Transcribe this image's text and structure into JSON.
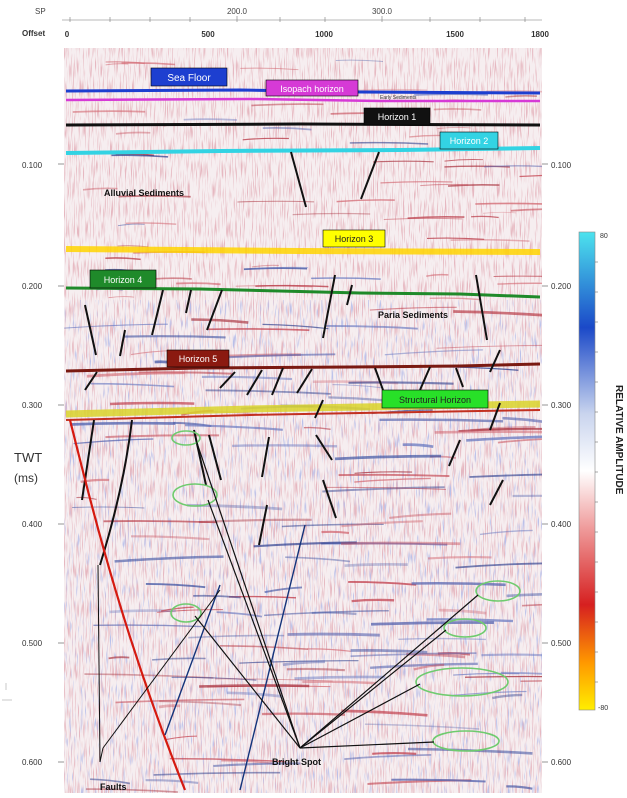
{
  "header": {
    "sp_label": "SP",
    "offset_label": "Offset",
    "sp_ticks": [
      "200.0",
      "300.0"
    ],
    "offset_ticks": [
      "0",
      "500",
      "1000",
      "1500",
      "1800"
    ]
  },
  "twt_axis": {
    "title_line1": "TWT",
    "title_line2": "(ms)",
    "left_ticks": [
      "0.100",
      "0.200",
      "0.300",
      "0.400",
      "0.500",
      "0.600"
    ],
    "right_ticks": [
      "0.100",
      "0.200",
      "0.300",
      "0.400",
      "0.500",
      "0.600"
    ]
  },
  "horizons": [
    {
      "label": "Sea Floor",
      "box_color": "#1d3fd0",
      "text_color": "#ffffff"
    },
    {
      "label": "Isopach horizon",
      "box_color": "#d63ad6",
      "text_color": "#ffffff"
    },
    {
      "label": "Horizon 1",
      "box_color": "#111111",
      "text_color": "#ffffff"
    },
    {
      "label": "Horizon 2",
      "box_color": "#33d3e3",
      "text_color": "#ffffff"
    },
    {
      "label": "Horizon 3",
      "box_color": "#ffff00",
      "text_color": "#222222"
    },
    {
      "label": "Horizon 4",
      "box_color": "#1f8a2a",
      "text_color": "#ffffff"
    },
    {
      "label": "Horizon 5",
      "box_color": "#8b1a10",
      "text_color": "#ffffff"
    },
    {
      "label": "Structural Horizon",
      "box_color": "#28e028",
      "text_color": "#222222"
    }
  ],
  "small_label": "Early Sediments",
  "annotations": {
    "alluvial": "Alluvial Sediments",
    "paria": "Paria Sediments",
    "bright_spot": "Bright Spot",
    "faults": "Faults"
  },
  "colorbar": {
    "title": "RELATIVE AMPLITUDE",
    "max_label": "80",
    "min_label": "-80",
    "colors": [
      "#4de3ee",
      "#1b49c8",
      "#c9d4ee",
      "#ffffff",
      "#ef9b9b",
      "#d62020",
      "#ff9800",
      "#ffee00"
    ]
  }
}
